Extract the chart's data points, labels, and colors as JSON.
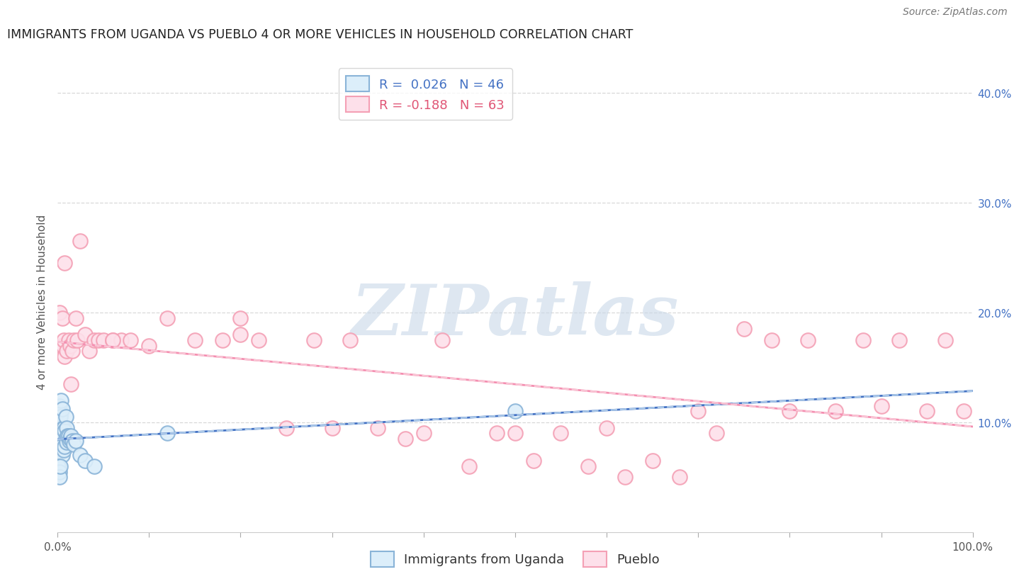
{
  "title": "IMMIGRANTS FROM UGANDA VS PUEBLO 4 OR MORE VEHICLES IN HOUSEHOLD CORRELATION CHART",
  "source": "Source: ZipAtlas.com",
  "ylabel": "4 or more Vehicles in Household",
  "xlim": [
    0,
    1.0
  ],
  "ylim": [
    0,
    0.42
  ],
  "blue_R": 0.026,
  "blue_N": 46,
  "pink_R": -0.188,
  "pink_N": 63,
  "background_color": "#ffffff",
  "grid_color": "#d8d8d8",
  "watermark_text": "ZIPatlas",
  "watermark_color": "#c8d8e8",
  "blue_scatter_x": [
    0.001,
    0.001,
    0.002,
    0.002,
    0.002,
    0.002,
    0.002,
    0.002,
    0.003,
    0.003,
    0.003,
    0.003,
    0.003,
    0.004,
    0.004,
    0.004,
    0.005,
    0.005,
    0.005,
    0.006,
    0.006,
    0.007,
    0.007,
    0.008,
    0.008,
    0.009,
    0.009,
    0.01,
    0.01,
    0.011,
    0.012,
    0.013,
    0.014,
    0.015,
    0.016,
    0.018,
    0.02,
    0.025,
    0.03,
    0.04,
    0.001,
    0.002,
    0.002,
    0.003,
    0.12,
    0.5
  ],
  "blue_scatter_y": [
    0.09,
    0.085,
    0.115,
    0.11,
    0.095,
    0.085,
    0.08,
    0.075,
    0.108,
    0.105,
    0.092,
    0.085,
    0.078,
    0.12,
    0.088,
    0.075,
    0.112,
    0.088,
    0.07,
    0.095,
    0.08,
    0.095,
    0.075,
    0.092,
    0.078,
    0.105,
    0.085,
    0.095,
    0.082,
    0.088,
    0.088,
    0.083,
    0.085,
    0.088,
    0.083,
    0.08,
    0.083,
    0.07,
    0.065,
    0.06,
    0.06,
    0.055,
    0.05,
    0.06,
    0.09,
    0.11
  ],
  "pink_scatter_x": [
    0.002,
    0.004,
    0.005,
    0.006,
    0.007,
    0.008,
    0.01,
    0.012,
    0.014,
    0.016,
    0.018,
    0.02,
    0.022,
    0.025,
    0.03,
    0.035,
    0.04,
    0.045,
    0.05,
    0.06,
    0.07,
    0.08,
    0.1,
    0.12,
    0.15,
    0.18,
    0.2,
    0.22,
    0.25,
    0.28,
    0.3,
    0.32,
    0.35,
    0.38,
    0.4,
    0.42,
    0.45,
    0.48,
    0.5,
    0.52,
    0.55,
    0.58,
    0.6,
    0.62,
    0.65,
    0.68,
    0.7,
    0.72,
    0.75,
    0.78,
    0.8,
    0.82,
    0.85,
    0.88,
    0.9,
    0.92,
    0.95,
    0.97,
    0.99,
    0.008,
    0.015,
    0.06,
    0.2
  ],
  "pink_scatter_y": [
    0.2,
    0.17,
    0.195,
    0.17,
    0.175,
    0.16,
    0.165,
    0.175,
    0.17,
    0.165,
    0.175,
    0.195,
    0.175,
    0.265,
    0.18,
    0.165,
    0.175,
    0.175,
    0.175,
    0.175,
    0.175,
    0.175,
    0.17,
    0.195,
    0.175,
    0.175,
    0.195,
    0.175,
    0.095,
    0.175,
    0.095,
    0.175,
    0.095,
    0.085,
    0.09,
    0.175,
    0.06,
    0.09,
    0.09,
    0.065,
    0.09,
    0.06,
    0.095,
    0.05,
    0.065,
    0.05,
    0.11,
    0.09,
    0.185,
    0.175,
    0.11,
    0.175,
    0.11,
    0.175,
    0.115,
    0.175,
    0.11,
    0.175,
    0.11,
    0.245,
    0.135,
    0.175,
    0.18
  ],
  "blue_line_color": "#4472c4",
  "blue_dash_color": "#aac8e8",
  "pink_line_color": "#f48fb1",
  "pink_dash_color": "#f9c4d4",
  "blue_dot_color": "#8ab4d8",
  "pink_dot_color": "#f4a0b5",
  "blue_dot_face": "#dceefa",
  "pink_dot_face": "#fde0ea"
}
